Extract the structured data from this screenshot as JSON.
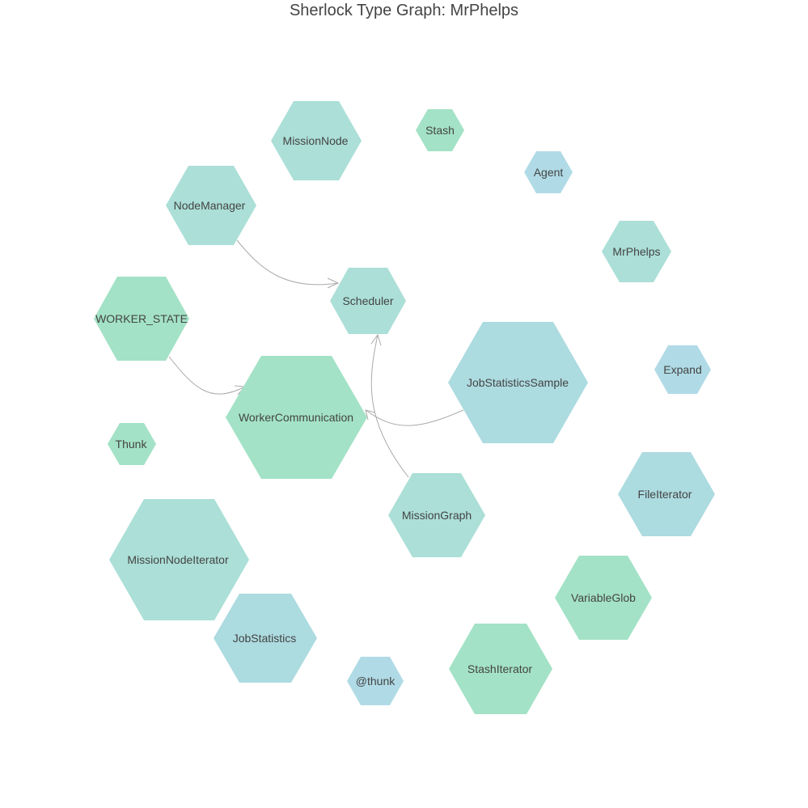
{
  "title": "Sherlock Type Graph: MrPhelps",
  "colors": {
    "green": "#a3e2c6",
    "teal": "#abdfd7",
    "blue": "#acdbe0",
    "lightblue": "#b0dbe6",
    "edge": "#aaaaaa",
    "text": "#444444"
  },
  "nodes": [
    {
      "id": "MissionNode",
      "label": "MissionNode",
      "color": "teal"
    },
    {
      "id": "Stash",
      "label": "Stash",
      "color": "green"
    },
    {
      "id": "Agent",
      "label": "Agent",
      "color": "lightblue"
    },
    {
      "id": "NodeManager",
      "label": "NodeManager",
      "color": "teal"
    },
    {
      "id": "MrPhelps",
      "label": "MrPhelps",
      "color": "teal"
    },
    {
      "id": "Scheduler",
      "label": "Scheduler",
      "color": "teal"
    },
    {
      "id": "WORKER_STATE",
      "label": "WORKER_STATE",
      "color": "green"
    },
    {
      "id": "JobStatisticsSample",
      "label": "JobStatisticsSample",
      "color": "blue"
    },
    {
      "id": "Expand",
      "label": "Expand",
      "color": "lightblue"
    },
    {
      "id": "WorkerCommunication",
      "label": "WorkerCommunication",
      "color": "green"
    },
    {
      "id": "Thunk",
      "label": "Thunk",
      "color": "green"
    },
    {
      "id": "FileIterator",
      "label": "FileIterator",
      "color": "blue"
    },
    {
      "id": "MissionGraph",
      "label": "MissionGraph",
      "color": "teal"
    },
    {
      "id": "MissionNodeIterator",
      "label": "MissionNodeIterator",
      "color": "teal"
    },
    {
      "id": "VariableGlob",
      "label": "VariableGlob",
      "color": "green"
    },
    {
      "id": "JobStatistics",
      "label": "JobStatistics",
      "color": "blue"
    },
    {
      "id": "StashIterator",
      "label": "StashIterator",
      "color": "green"
    },
    {
      "id": "thunk",
      "label": "@thunk",
      "color": "lightblue"
    }
  ],
  "edges": [
    {
      "from": "NodeManager",
      "to": "Scheduler"
    },
    {
      "from": "WORKER_STATE",
      "to": "WorkerCommunication"
    },
    {
      "from": "JobStatisticsSample",
      "to": "WorkerCommunication"
    },
    {
      "from": "MissionGraph",
      "to": "Scheduler"
    }
  ]
}
